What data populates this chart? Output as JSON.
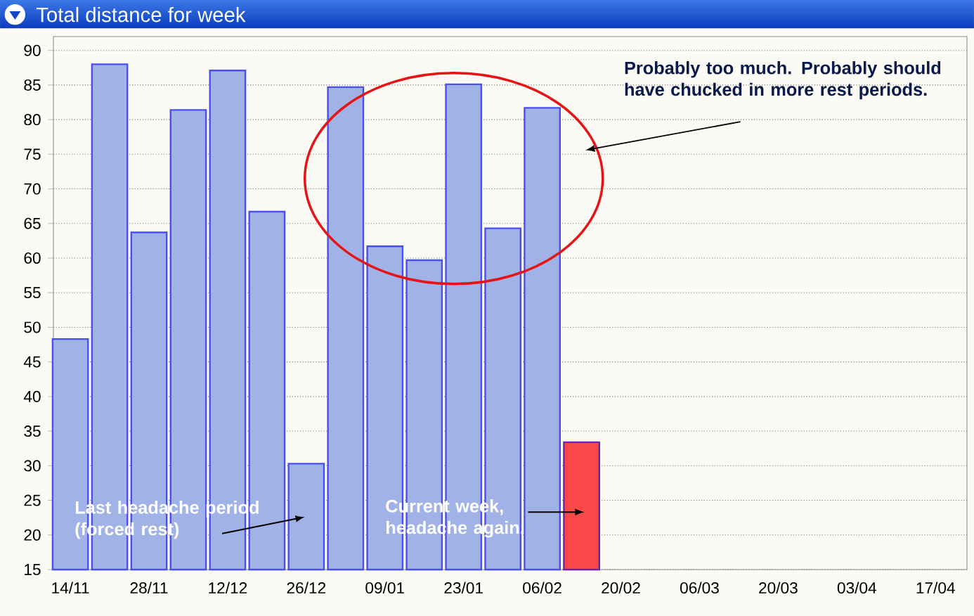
{
  "chart_data": {
    "type": "bar",
    "title": "Total distance for week",
    "categories": [
      "14/11",
      null,
      "28/11",
      null,
      "12/12",
      null,
      "26/12",
      null,
      "09/01",
      null,
      "23/01",
      null,
      "06/02",
      null,
      "20/02",
      null,
      "06/03",
      null,
      "20/03",
      null,
      "03/04",
      null,
      "17/04"
    ],
    "values": [
      48.3,
      88.0,
      63.7,
      81.4,
      87.1,
      66.7,
      30.3,
      84.7,
      61.7,
      59.7,
      85.1,
      64.3,
      81.7,
      33.4,
      null,
      null,
      null,
      null,
      null,
      null,
      null,
      null,
      null
    ],
    "colors": [
      "#a0b2e6",
      "#a0b2e6",
      "#a0b2e6",
      "#a0b2e6",
      "#a0b2e6",
      "#a0b2e6",
      "#a0b2e6",
      "#a0b2e6",
      "#a0b2e6",
      "#a0b2e6",
      "#a0b2e6",
      "#a0b2e6",
      "#a0b2e6",
      "#f84848",
      null,
      null,
      null,
      null,
      null,
      null,
      null,
      null,
      null
    ],
    "ylim": [
      15,
      92
    ],
    "yticks": [
      15,
      20,
      25,
      30,
      35,
      40,
      45,
      50,
      55,
      60,
      65,
      70,
      75,
      80,
      85,
      90
    ],
    "grid": "y",
    "annotations": [
      "Probably too much.   Probably should have chucked in more rest periods.",
      "Last headache period (forced rest)",
      "Current week, headache again."
    ]
  }
}
